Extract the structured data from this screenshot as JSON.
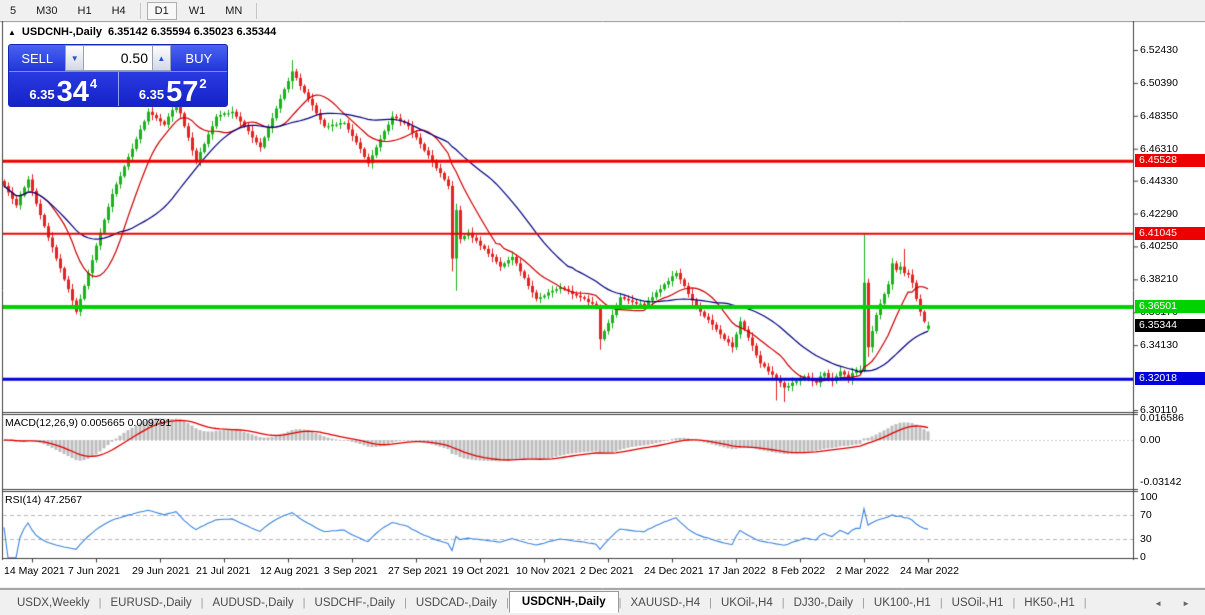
{
  "toolbar": {
    "timeframes": [
      {
        "label": "5",
        "selected": false
      },
      {
        "label": "M30",
        "selected": false
      },
      {
        "label": "H1",
        "selected": false
      },
      {
        "label": "H4",
        "selected": false
      },
      {
        "label": "D1",
        "selected": true
      },
      {
        "label": "W1",
        "selected": false
      },
      {
        "label": "MN",
        "selected": false
      }
    ]
  },
  "chart_header": {
    "collapse_arrow": "▲",
    "title": "USDCNH-,Daily",
    "ohlc": "6.35142 6.35594 6.35023 6.35344"
  },
  "trade_panel": {
    "sell_label": "SELL",
    "buy_label": "BUY",
    "volume": "0.50",
    "spin_down": "▼",
    "spin_up": "▲",
    "sell_price_prefix": "6.35",
    "sell_price_big": "34",
    "sell_price_sup": "4",
    "buy_price_prefix": "6.35",
    "buy_price_big": "57",
    "buy_price_sup": "2"
  },
  "chart_data": {
    "type": "candlestick",
    "symbol": "USDCNH-",
    "timeframe": "Daily",
    "last_bar": {
      "open": 6.35142,
      "high": 6.35594,
      "low": 6.35023,
      "close": 6.35344
    },
    "price_axis_ticks": [
      "6.52430",
      "6.50390",
      "6.48350",
      "6.46310",
      "6.44330",
      "6.42290",
      "6.40250",
      "6.38210",
      "6.36170",
      "6.34130",
      "6.30110"
    ],
    "scale": {
      "top_price": 6.54104,
      "bottom_price": 6.29986
    },
    "level_lines": [
      {
        "price": 6.45528,
        "label": "6.45528",
        "color": "#ee0000",
        "thickness": 3
      },
      {
        "price": 6.41045,
        "label": "6.41045",
        "color": "#ee0000",
        "thickness": 2
      },
      {
        "price": 6.36501,
        "label": "6.36501",
        "color": "#00d200",
        "thickness": 4
      },
      {
        "price": 6.32018,
        "label": "6.32018",
        "color": "#0000dc",
        "thickness": 3
      }
    ],
    "current_price_badge": {
      "label": "6.35344",
      "price": 6.35344,
      "color": "#000000"
    },
    "moving_averages": [
      {
        "period": 12,
        "color": "#cc0000"
      },
      {
        "period": 30,
        "color": "#000080"
      }
    ],
    "colors": {
      "bull": "#1db21d",
      "bear": "#e32424",
      "hist": "#bdbdbd",
      "macd_signal": "#e00000",
      "rsi_line": "#3d85dd"
    },
    "x_axis_labels": [
      "14 May 2021",
      "7 Jun 2021",
      "29 Jun 2021",
      "21 Jul 2021",
      "12 Aug 2021",
      "3 Sep 2021",
      "27 Sep 2021",
      "19 Oct 2021",
      "10 Nov 2021",
      "2 Dec 2021",
      "24 Dec 2021",
      "17 Jan 2022",
      "8 Feb 2022",
      "2 Mar 2022",
      "24 Mar 2022"
    ],
    "macd": {
      "label": "MACD(12,26,9) 0.005665 0.009791",
      "params": [
        12,
        26,
        9
      ],
      "main_value": 0.005665,
      "signal_value": 0.009791,
      "axis_ticks": [
        "0.016586",
        "0.00",
        "-0.03142"
      ]
    },
    "rsi": {
      "label": "RSI(14) 47.2567",
      "period": 14,
      "value": 47.2567,
      "axis_ticks": [
        "100",
        "70",
        "30",
        "0"
      ],
      "levels": [
        70,
        30
      ]
    },
    "candles": {
      "closes": [
        6.44,
        6.436,
        6.432,
        6.428,
        6.434,
        6.439,
        6.444,
        6.437,
        6.429,
        6.422,
        6.415,
        6.408,
        6.402,
        6.395,
        6.389,
        6.382,
        6.376,
        6.369,
        6.362,
        6.37,
        6.378,
        6.386,
        6.394,
        6.403,
        6.411,
        6.419,
        6.427,
        6.435,
        6.441,
        6.446,
        6.452,
        6.458,
        6.463,
        6.469,
        6.475,
        6.48,
        6.486,
        6.484,
        6.482,
        6.48,
        6.478,
        6.483,
        6.487,
        6.492,
        6.485,
        6.477,
        6.47,
        6.462,
        6.455,
        6.461,
        6.466,
        6.472,
        6.477,
        6.483,
        6.484,
        6.485,
        6.485,
        6.486,
        6.483,
        6.48,
        6.477,
        6.474,
        6.47,
        6.467,
        6.464,
        6.47,
        6.476,
        6.482,
        6.488,
        6.494,
        6.5,
        6.505,
        6.511,
        6.507,
        6.502,
        6.498,
        6.494,
        6.49,
        6.485,
        6.481,
        6.477,
        6.477,
        6.478,
        6.478,
        6.479,
        6.479,
        6.475,
        6.471,
        6.467,
        6.463,
        6.458,
        6.454,
        6.459,
        6.464,
        6.469,
        6.474,
        6.478,
        6.483,
        6.482,
        6.48,
        6.479,
        6.477,
        6.473,
        6.47,
        6.466,
        6.462,
        6.459,
        6.455,
        6.451,
        6.448,
        6.444,
        6.44,
        6.395,
        6.425,
        6.407,
        6.409,
        6.411,
        6.408,
        6.406,
        6.403,
        6.401,
        6.398,
        6.396,
        6.393,
        6.39,
        6.392,
        6.394,
        6.396,
        6.392,
        6.387,
        6.383,
        6.378,
        6.374,
        6.37,
        6.371,
        6.372,
        6.374,
        6.375,
        6.376,
        6.377,
        6.376,
        6.375,
        6.373,
        6.372,
        6.371,
        6.37,
        6.368,
        6.367,
        6.365,
        6.345,
        6.35,
        6.355,
        6.36,
        6.366,
        6.371,
        6.37,
        6.369,
        6.368,
        6.367,
        6.367,
        6.366,
        6.369,
        6.371,
        6.374,
        6.376,
        6.379,
        6.381,
        6.384,
        6.386,
        6.382,
        6.378,
        6.373,
        6.369,
        6.365,
        6.362,
        6.359,
        6.357,
        6.354,
        6.351,
        6.348,
        6.345,
        6.343,
        6.34,
        6.348,
        6.356,
        6.351,
        6.346,
        6.341,
        6.335,
        6.33,
        6.328,
        6.325,
        6.323,
        6.32,
        6.318,
        6.315,
        6.316,
        6.318,
        6.319,
        6.32,
        6.322,
        6.321,
        6.319,
        6.318,
        6.322,
        6.324,
        6.321,
        6.319,
        6.322,
        6.325,
        6.323,
        6.32,
        6.324,
        6.326,
        6.326,
        6.38,
        6.34,
        6.35,
        6.36,
        6.367,
        6.373,
        6.379,
        6.392,
        6.388,
        6.39,
        6.386,
        6.385,
        6.38,
        6.37,
        6.362,
        6.356,
        6.35344
      ],
      "overrides": {
        "72": [
          6.505,
          6.518,
          6.5,
          6.511
        ],
        "112": [
          6.44,
          6.443,
          6.387,
          6.395
        ],
        "113": [
          6.395,
          6.429,
          6.375,
          6.425
        ],
        "149": [
          6.365,
          6.3665,
          6.3385,
          6.345
        ],
        "193": [
          6.323,
          6.324,
          6.307,
          6.32
        ],
        "195": [
          6.318,
          6.319,
          6.306,
          6.315
        ],
        "215": [
          6.326,
          6.41,
          6.3245,
          6.38
        ],
        "216": [
          6.38,
          6.3825,
          6.334,
          6.34
        ],
        "225": [
          6.39,
          6.401,
          6.384,
          6.386
        ],
        "231": [
          6.35142,
          6.35594,
          6.35023,
          6.35344
        ]
      }
    }
  },
  "tab_bar": {
    "tabs": [
      {
        "label": "USDX,Weekly",
        "selected": false
      },
      {
        "label": "EURUSD-,Daily",
        "selected": false
      },
      {
        "label": "AUDUSD-,Daily",
        "selected": false
      },
      {
        "label": "USDCHF-,Daily",
        "selected": false
      },
      {
        "label": "USDCAD-,Daily",
        "selected": false
      },
      {
        "label": "USDCNH-,Daily",
        "selected": true
      },
      {
        "label": "XAUUSD-,H4",
        "selected": false
      },
      {
        "label": "UKOil-,H4",
        "selected": false
      },
      {
        "label": "DJ30-,Daily",
        "selected": false
      },
      {
        "label": "UK100-,H1",
        "selected": false
      },
      {
        "label": "USOil-,H1",
        "selected": false
      },
      {
        "label": "HK50-,H1",
        "selected": false
      }
    ],
    "scroll_left": "◄",
    "scroll_right": "►"
  }
}
